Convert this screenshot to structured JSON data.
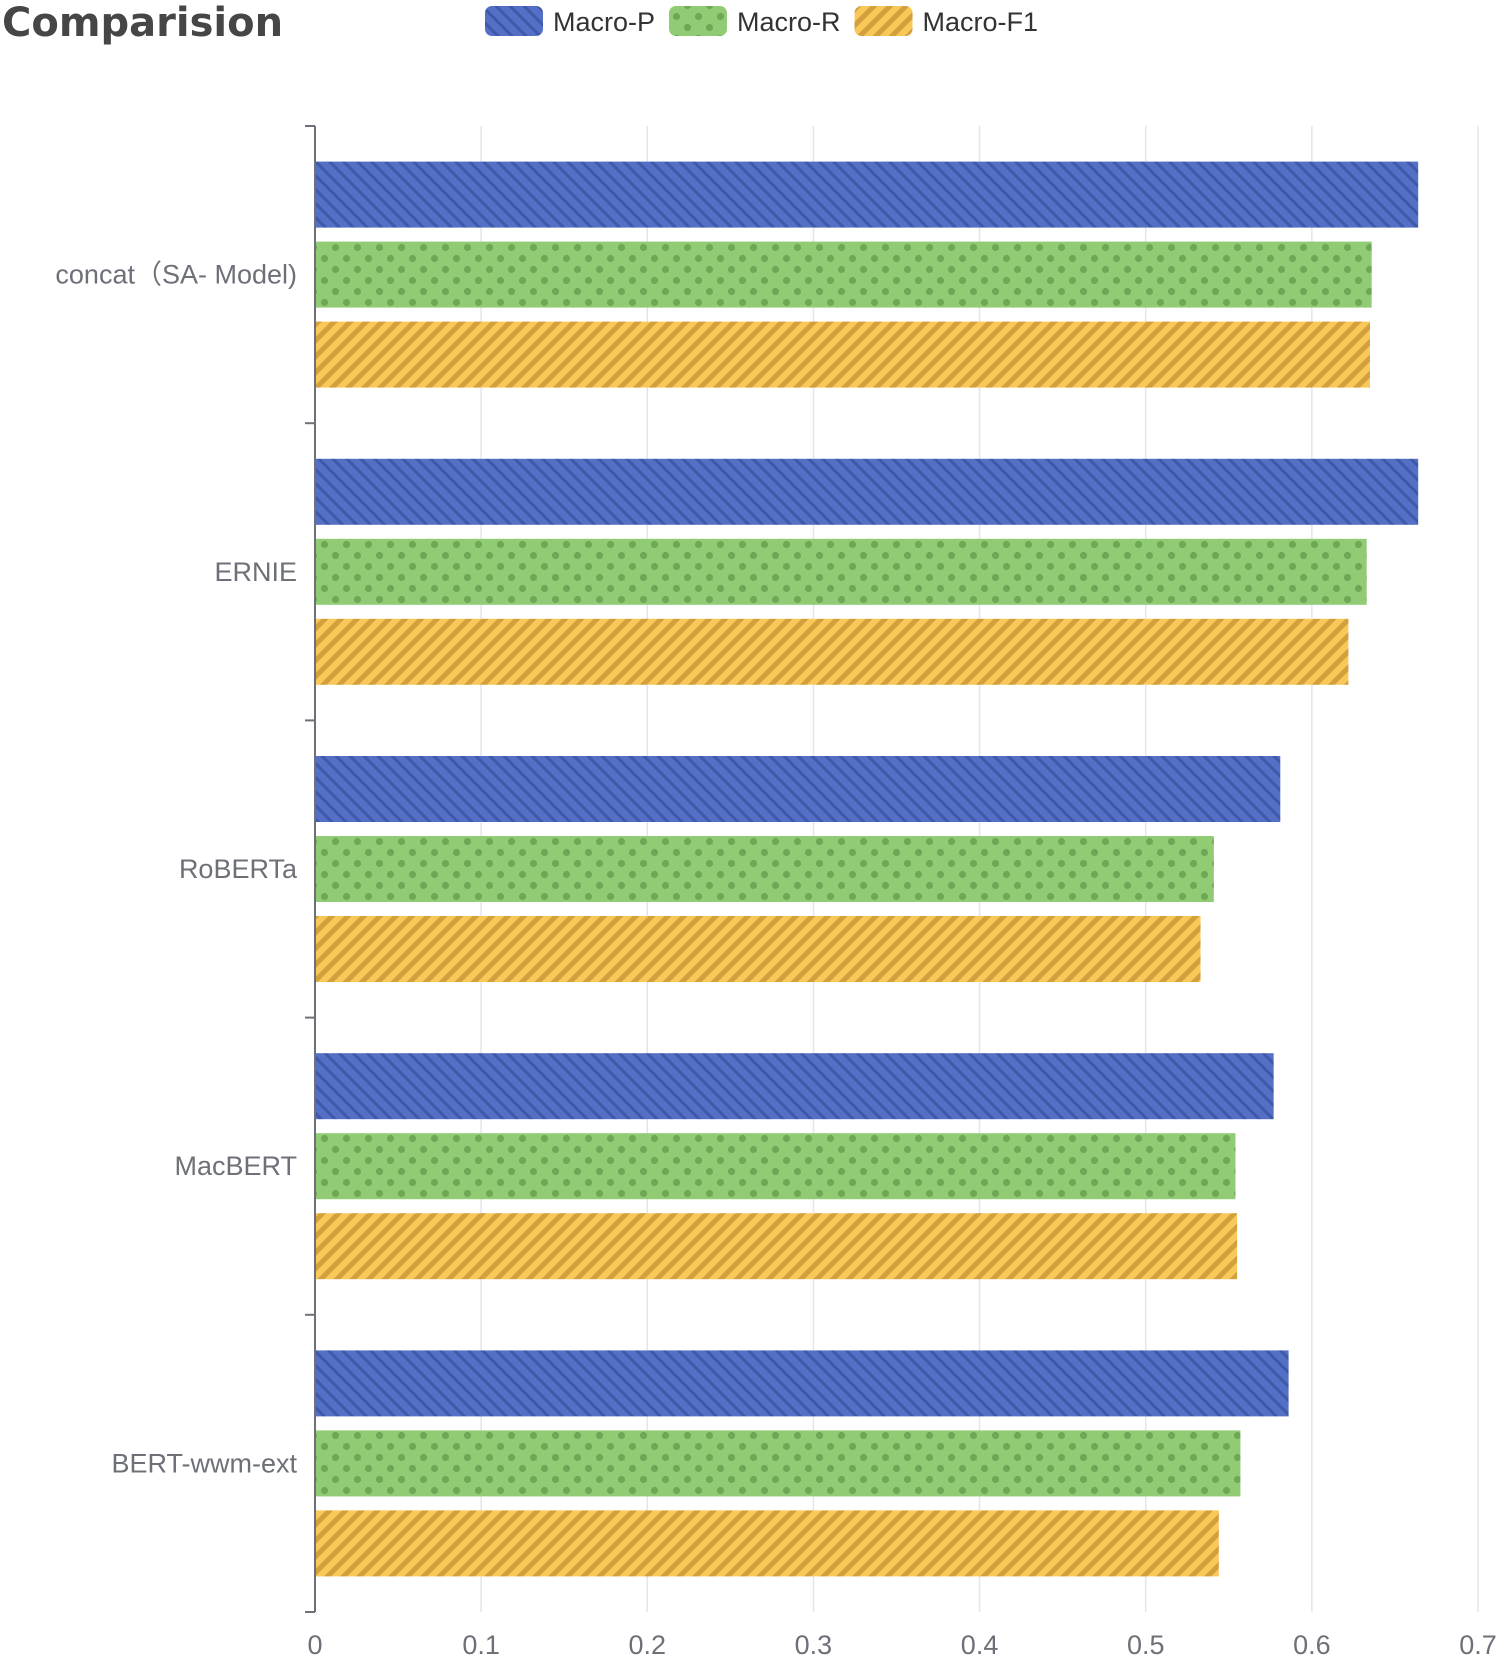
{
  "chart_data": {
    "type": "bar",
    "orientation": "horizontal",
    "title": "Comparision",
    "categories": [
      "concat（SA- Model)",
      "ERNIE",
      "RoBERTa",
      "MacBERT",
      "BERT-wwm-ext"
    ],
    "series": [
      {
        "name": "Macro-P",
        "color": "#5470c6",
        "pattern": "diagonal-stripes-back",
        "values": [
          0.664,
          0.664,
          0.581,
          0.577,
          0.586
        ]
      },
      {
        "name": "Macro-R",
        "color": "#91cc75",
        "pattern": "dots",
        "values": [
          0.636,
          0.633,
          0.541,
          0.554,
          0.557
        ]
      },
      {
        "name": "Macro-F1",
        "color": "#fac858",
        "pattern": "diagonal-stripes-forward",
        "values": [
          0.635,
          0.622,
          0.533,
          0.555,
          0.544
        ]
      }
    ],
    "xlim": [
      0,
      0.7
    ],
    "x_ticks": [
      "0",
      "0.1",
      "0.2",
      "0.3",
      "0.4",
      "0.5",
      "0.6",
      "0.7"
    ],
    "grid": true,
    "legend": "top-center"
  }
}
